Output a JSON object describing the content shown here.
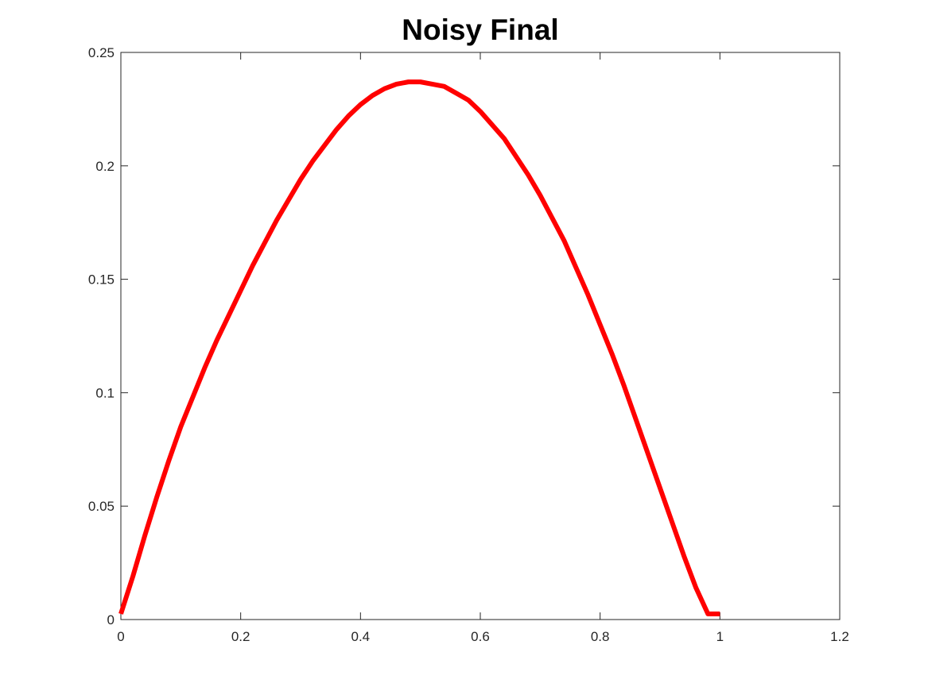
{
  "chart_data": {
    "type": "line",
    "title": "Noisy Final",
    "xlabel": "",
    "ylabel": "",
    "xlim": [
      0,
      1.2
    ],
    "ylim": [
      0,
      0.25
    ],
    "x_ticks": [
      "0",
      "0.2",
      "0.4",
      "0.6",
      "0.8",
      "1",
      "1.2"
    ],
    "y_ticks": [
      "0",
      "0.05",
      "0.1",
      "0.15",
      "0.2",
      "0.25"
    ],
    "grid": false,
    "legend": "none",
    "series": [
      {
        "color": "#ff0000",
        "x": [
          0.0,
          0.02,
          0.04,
          0.06,
          0.08,
          0.1,
          0.12,
          0.14,
          0.16,
          0.18,
          0.2,
          0.22,
          0.24,
          0.26,
          0.28,
          0.3,
          0.32,
          0.34,
          0.36,
          0.38,
          0.4,
          0.42,
          0.44,
          0.46,
          0.48,
          0.5,
          0.52,
          0.54,
          0.56,
          0.58,
          0.6,
          0.62,
          0.64,
          0.66,
          0.68,
          0.7,
          0.72,
          0.74,
          0.76,
          0.78,
          0.8,
          0.82,
          0.84,
          0.86,
          0.88,
          0.9,
          0.92,
          0.94,
          0.96,
          0.98,
          1.0
        ],
        "values": [
          0.0025,
          0.019,
          0.037,
          0.054,
          0.07,
          0.085,
          0.098,
          0.111,
          0.123,
          0.134,
          0.145,
          0.156,
          0.166,
          0.176,
          0.185,
          0.194,
          0.202,
          0.209,
          0.216,
          0.222,
          0.227,
          0.231,
          0.234,
          0.236,
          0.237,
          0.237,
          0.236,
          0.235,
          0.232,
          0.229,
          0.224,
          0.218,
          0.212,
          0.204,
          0.196,
          0.187,
          0.177,
          0.167,
          0.155,
          0.143,
          0.13,
          0.117,
          0.103,
          0.088,
          0.073,
          0.058,
          0.043,
          0.028,
          0.014,
          0.0025,
          0.0025
        ]
      }
    ]
  }
}
